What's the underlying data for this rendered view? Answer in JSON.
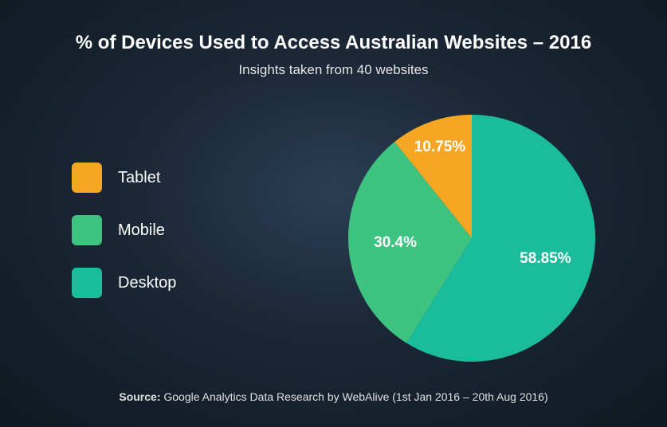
{
  "title": "% of Devices Used to Access Australian Websites – 2016",
  "subtitle": "Insights taken from 40 websites",
  "chart": {
    "type": "pie",
    "background": "radial-gradient(ellipse at 50% 45%, #2a3f54 0%, #1b2838 40%, #101820 100%)",
    "title_fontsize": 24,
    "subtitle_fontsize": 17,
    "label_fontsize": 19,
    "legend_fontsize": 20,
    "legend_swatch_size": 38,
    "legend_swatch_radius": 6,
    "text_color": "#ffffff",
    "slices": [
      {
        "name": "Tablet",
        "value": 10.75,
        "label": "10.75%",
        "color": "#f5a623"
      },
      {
        "name": "Mobile",
        "value": 30.4,
        "label": "30.4%",
        "color": "#3fc380"
      },
      {
        "name": "Desktop",
        "value": 58.85,
        "label": "58.85%",
        "color": "#1abc9c"
      }
    ],
    "start_angle_deg": -90,
    "direction": "ccw",
    "radius": 155,
    "size": 330
  },
  "legend": {
    "items": [
      {
        "label": "Tablet",
        "color": "#f5a623"
      },
      {
        "label": "Mobile",
        "color": "#3fc380"
      },
      {
        "label": "Desktop",
        "color": "#1abc9c"
      }
    ]
  },
  "source": {
    "prefix": "Source:",
    "text": "Google Analytics Data Research by WebAlive (1st Jan 2016 – 20th Aug 2016)"
  }
}
